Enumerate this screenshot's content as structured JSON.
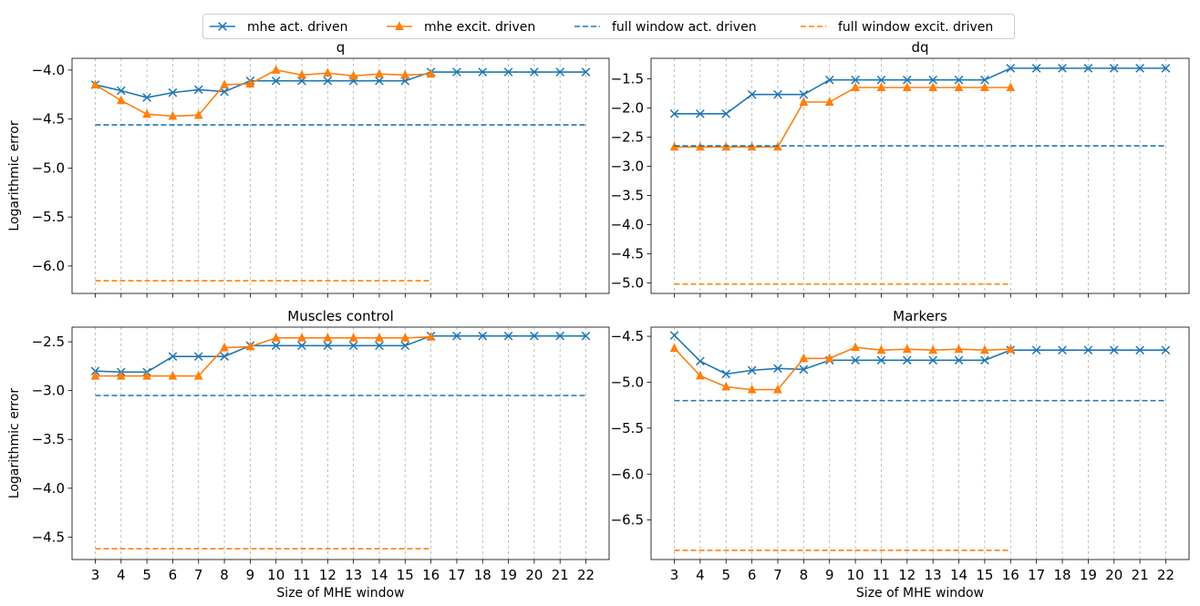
{
  "legend": {
    "location": "top-center",
    "items": [
      {
        "label": "mhe act. driven",
        "color": "#1f77b4",
        "style": "solid",
        "marker": "x"
      },
      {
        "label": "mhe excit. driven",
        "color": "#ff7f0e",
        "style": "solid",
        "marker": "triangle"
      },
      {
        "label": "full window act. driven",
        "color": "#1f77b4",
        "style": "dashed",
        "marker": "none"
      },
      {
        "label": "full window excit. driven",
        "color": "#ff7f0e",
        "style": "dashed",
        "marker": "none"
      }
    ]
  },
  "chart_data": [
    {
      "type": "line",
      "title": "q",
      "xlabel": "",
      "ylabel": "Logarithmic error",
      "x_ticks_labeled": false,
      "xlim": [
        2.1,
        22.9
      ],
      "ylim": [
        -6.28,
        -3.88
      ],
      "yticks": [
        -6.0,
        -5.5,
        -5.0,
        -4.5,
        -4.0
      ],
      "ytick_labels": [
        "−6.0",
        "−5.5",
        "−5.0",
        "−4.5",
        "−4.0"
      ],
      "vgrid": true,
      "series": [
        {
          "name": "mhe act. driven",
          "color": "#1f77b4",
          "marker": "x",
          "dashed": false,
          "x": [
            3,
            4,
            5,
            6,
            7,
            8,
            9,
            10,
            11,
            12,
            13,
            14,
            15,
            16,
            17,
            18,
            19,
            20,
            21,
            22
          ],
          "y": [
            -4.15,
            -4.21,
            -4.28,
            -4.23,
            -4.2,
            -4.22,
            -4.11,
            -4.11,
            -4.11,
            -4.11,
            -4.11,
            -4.11,
            -4.11,
            -4.02,
            -4.02,
            -4.02,
            -4.02,
            -4.02,
            -4.02,
            -4.02
          ]
        },
        {
          "name": "mhe excit. driven",
          "color": "#ff7f0e",
          "marker": "triangle",
          "dashed": false,
          "x": [
            3,
            4,
            5,
            6,
            7,
            8,
            9,
            10,
            11,
            12,
            13,
            14,
            15,
            16
          ],
          "y": [
            -4.15,
            -4.31,
            -4.45,
            -4.47,
            -4.46,
            -4.15,
            -4.14,
            -4.0,
            -4.05,
            -4.03,
            -4.06,
            -4.04,
            -4.05,
            -4.04
          ]
        },
        {
          "name": "full window act. driven",
          "color": "#1f77b4",
          "marker": "none",
          "dashed": true,
          "x": [
            3,
            22
          ],
          "y": [
            -4.56,
            -4.56
          ]
        },
        {
          "name": "full window excit. driven",
          "color": "#ff7f0e",
          "marker": "none",
          "dashed": true,
          "x": [
            3,
            16
          ],
          "y": [
            -6.15,
            -6.15
          ]
        }
      ]
    },
    {
      "type": "line",
      "title": "dq",
      "xlabel": "",
      "ylabel": "",
      "x_ticks_labeled": false,
      "xlim": [
        2.1,
        22.9
      ],
      "ylim": [
        -5.18,
        -1.15
      ],
      "yticks": [
        -5.0,
        -4.5,
        -4.0,
        -3.5,
        -3.0,
        -2.5,
        -2.0,
        -1.5
      ],
      "ytick_labels": [
        "−5.0",
        "−4.5",
        "−4.0",
        "−3.5",
        "−3.0",
        "−2.5",
        "−2.0",
        "−1.5"
      ],
      "vgrid": true,
      "series": [
        {
          "name": "mhe act. driven",
          "color": "#1f77b4",
          "marker": "x",
          "dashed": false,
          "x": [
            3,
            4,
            5,
            6,
            7,
            8,
            9,
            10,
            11,
            12,
            13,
            14,
            15,
            16,
            17,
            18,
            19,
            20,
            21,
            22
          ],
          "y": [
            -2.1,
            -2.1,
            -2.1,
            -1.77,
            -1.77,
            -1.77,
            -1.52,
            -1.52,
            -1.52,
            -1.52,
            -1.52,
            -1.52,
            -1.52,
            -1.32,
            -1.32,
            -1.32,
            -1.32,
            -1.32,
            -1.32,
            -1.32
          ]
        },
        {
          "name": "mhe excit. driven",
          "color": "#ff7f0e",
          "marker": "triangle",
          "dashed": false,
          "x": [
            3,
            4,
            5,
            6,
            7,
            8,
            9,
            10,
            11,
            12,
            13,
            14,
            15,
            16
          ],
          "y": [
            -2.67,
            -2.67,
            -2.67,
            -2.67,
            -2.67,
            -1.9,
            -1.9,
            -1.65,
            -1.65,
            -1.65,
            -1.65,
            -1.65,
            -1.65,
            -1.65
          ]
        },
        {
          "name": "full window act. driven",
          "color": "#1f77b4",
          "marker": "none",
          "dashed": true,
          "x": [
            3,
            22
          ],
          "y": [
            -2.65,
            -2.65
          ]
        },
        {
          "name": "full window excit. driven",
          "color": "#ff7f0e",
          "marker": "none",
          "dashed": true,
          "x": [
            3,
            16
          ],
          "y": [
            -5.02,
            -5.02
          ]
        }
      ]
    },
    {
      "type": "line",
      "title": "Muscles control",
      "xlabel": "Size of MHE window",
      "ylabel": "Logarithmic error",
      "x_ticks_labeled": true,
      "xlim": [
        2.1,
        22.9
      ],
      "ylim": [
        -4.73,
        -2.35
      ],
      "yticks": [
        -4.5,
        -4.0,
        -3.5,
        -3.0,
        -2.5
      ],
      "ytick_labels": [
        "−4.5",
        "−4.0",
        "−3.5",
        "−3.0",
        "−2.5"
      ],
      "vgrid": true,
      "series": [
        {
          "name": "mhe act. driven",
          "color": "#1f77b4",
          "marker": "x",
          "dashed": false,
          "x": [
            3,
            4,
            5,
            6,
            7,
            8,
            9,
            10,
            11,
            12,
            13,
            14,
            15,
            16,
            17,
            18,
            19,
            20,
            21,
            22
          ],
          "y": [
            -2.8,
            -2.81,
            -2.81,
            -2.65,
            -2.65,
            -2.65,
            -2.54,
            -2.54,
            -2.54,
            -2.54,
            -2.54,
            -2.54,
            -2.54,
            -2.44,
            -2.44,
            -2.44,
            -2.44,
            -2.44,
            -2.44,
            -2.44
          ]
        },
        {
          "name": "mhe excit. driven",
          "color": "#ff7f0e",
          "marker": "triangle",
          "dashed": false,
          "x": [
            3,
            4,
            5,
            6,
            7,
            8,
            9,
            10,
            11,
            12,
            13,
            14,
            15,
            16
          ],
          "y": [
            -2.85,
            -2.85,
            -2.85,
            -2.85,
            -2.85,
            -2.56,
            -2.55,
            -2.46,
            -2.46,
            -2.46,
            -2.46,
            -2.46,
            -2.46,
            -2.45
          ]
        },
        {
          "name": "full window act. driven",
          "color": "#1f77b4",
          "marker": "none",
          "dashed": true,
          "x": [
            3,
            22
          ],
          "y": [
            -3.05,
            -3.05
          ]
        },
        {
          "name": "full window excit. driven",
          "color": "#ff7f0e",
          "marker": "none",
          "dashed": true,
          "x": [
            3,
            16
          ],
          "y": [
            -4.62,
            -4.62
          ]
        }
      ]
    },
    {
      "type": "line",
      "title": "Markers",
      "xlabel": "Size of MHE window",
      "ylabel": "",
      "x_ticks_labeled": true,
      "xlim": [
        2.1,
        22.9
      ],
      "ylim": [
        -6.93,
        -4.4
      ],
      "yticks": [
        -6.5,
        -6.0,
        -5.5,
        -5.0,
        -4.5
      ],
      "ytick_labels": [
        "−6.5",
        "−6.0",
        "−5.5",
        "−5.0",
        "−4.5"
      ],
      "vgrid": true,
      "series": [
        {
          "name": "mhe act. driven",
          "color": "#1f77b4",
          "marker": "x",
          "dashed": false,
          "x": [
            3,
            4,
            5,
            6,
            7,
            8,
            9,
            10,
            11,
            12,
            13,
            14,
            15,
            16,
            17,
            18,
            19,
            20,
            21,
            22
          ],
          "y": [
            -4.49,
            -4.77,
            -4.91,
            -4.87,
            -4.85,
            -4.86,
            -4.76,
            -4.76,
            -4.76,
            -4.76,
            -4.76,
            -4.76,
            -4.76,
            -4.65,
            -4.65,
            -4.65,
            -4.65,
            -4.65,
            -4.65,
            -4.65
          ]
        },
        {
          "name": "mhe excit. driven",
          "color": "#ff7f0e",
          "marker": "triangle",
          "dashed": false,
          "x": [
            3,
            4,
            5,
            6,
            7,
            8,
            9,
            10,
            11,
            12,
            13,
            14,
            15,
            16
          ],
          "y": [
            -4.63,
            -4.93,
            -5.05,
            -5.08,
            -5.08,
            -4.74,
            -4.74,
            -4.62,
            -4.65,
            -4.64,
            -4.65,
            -4.64,
            -4.65,
            -4.64
          ]
        },
        {
          "name": "full window act. driven",
          "color": "#1f77b4",
          "marker": "none",
          "dashed": true,
          "x": [
            3,
            22
          ],
          "y": [
            -5.2,
            -5.2
          ]
        },
        {
          "name": "full window excit. driven",
          "color": "#ff7f0e",
          "marker": "none",
          "dashed": true,
          "x": [
            3,
            16
          ],
          "y": [
            -6.83,
            -6.83
          ]
        }
      ]
    }
  ]
}
